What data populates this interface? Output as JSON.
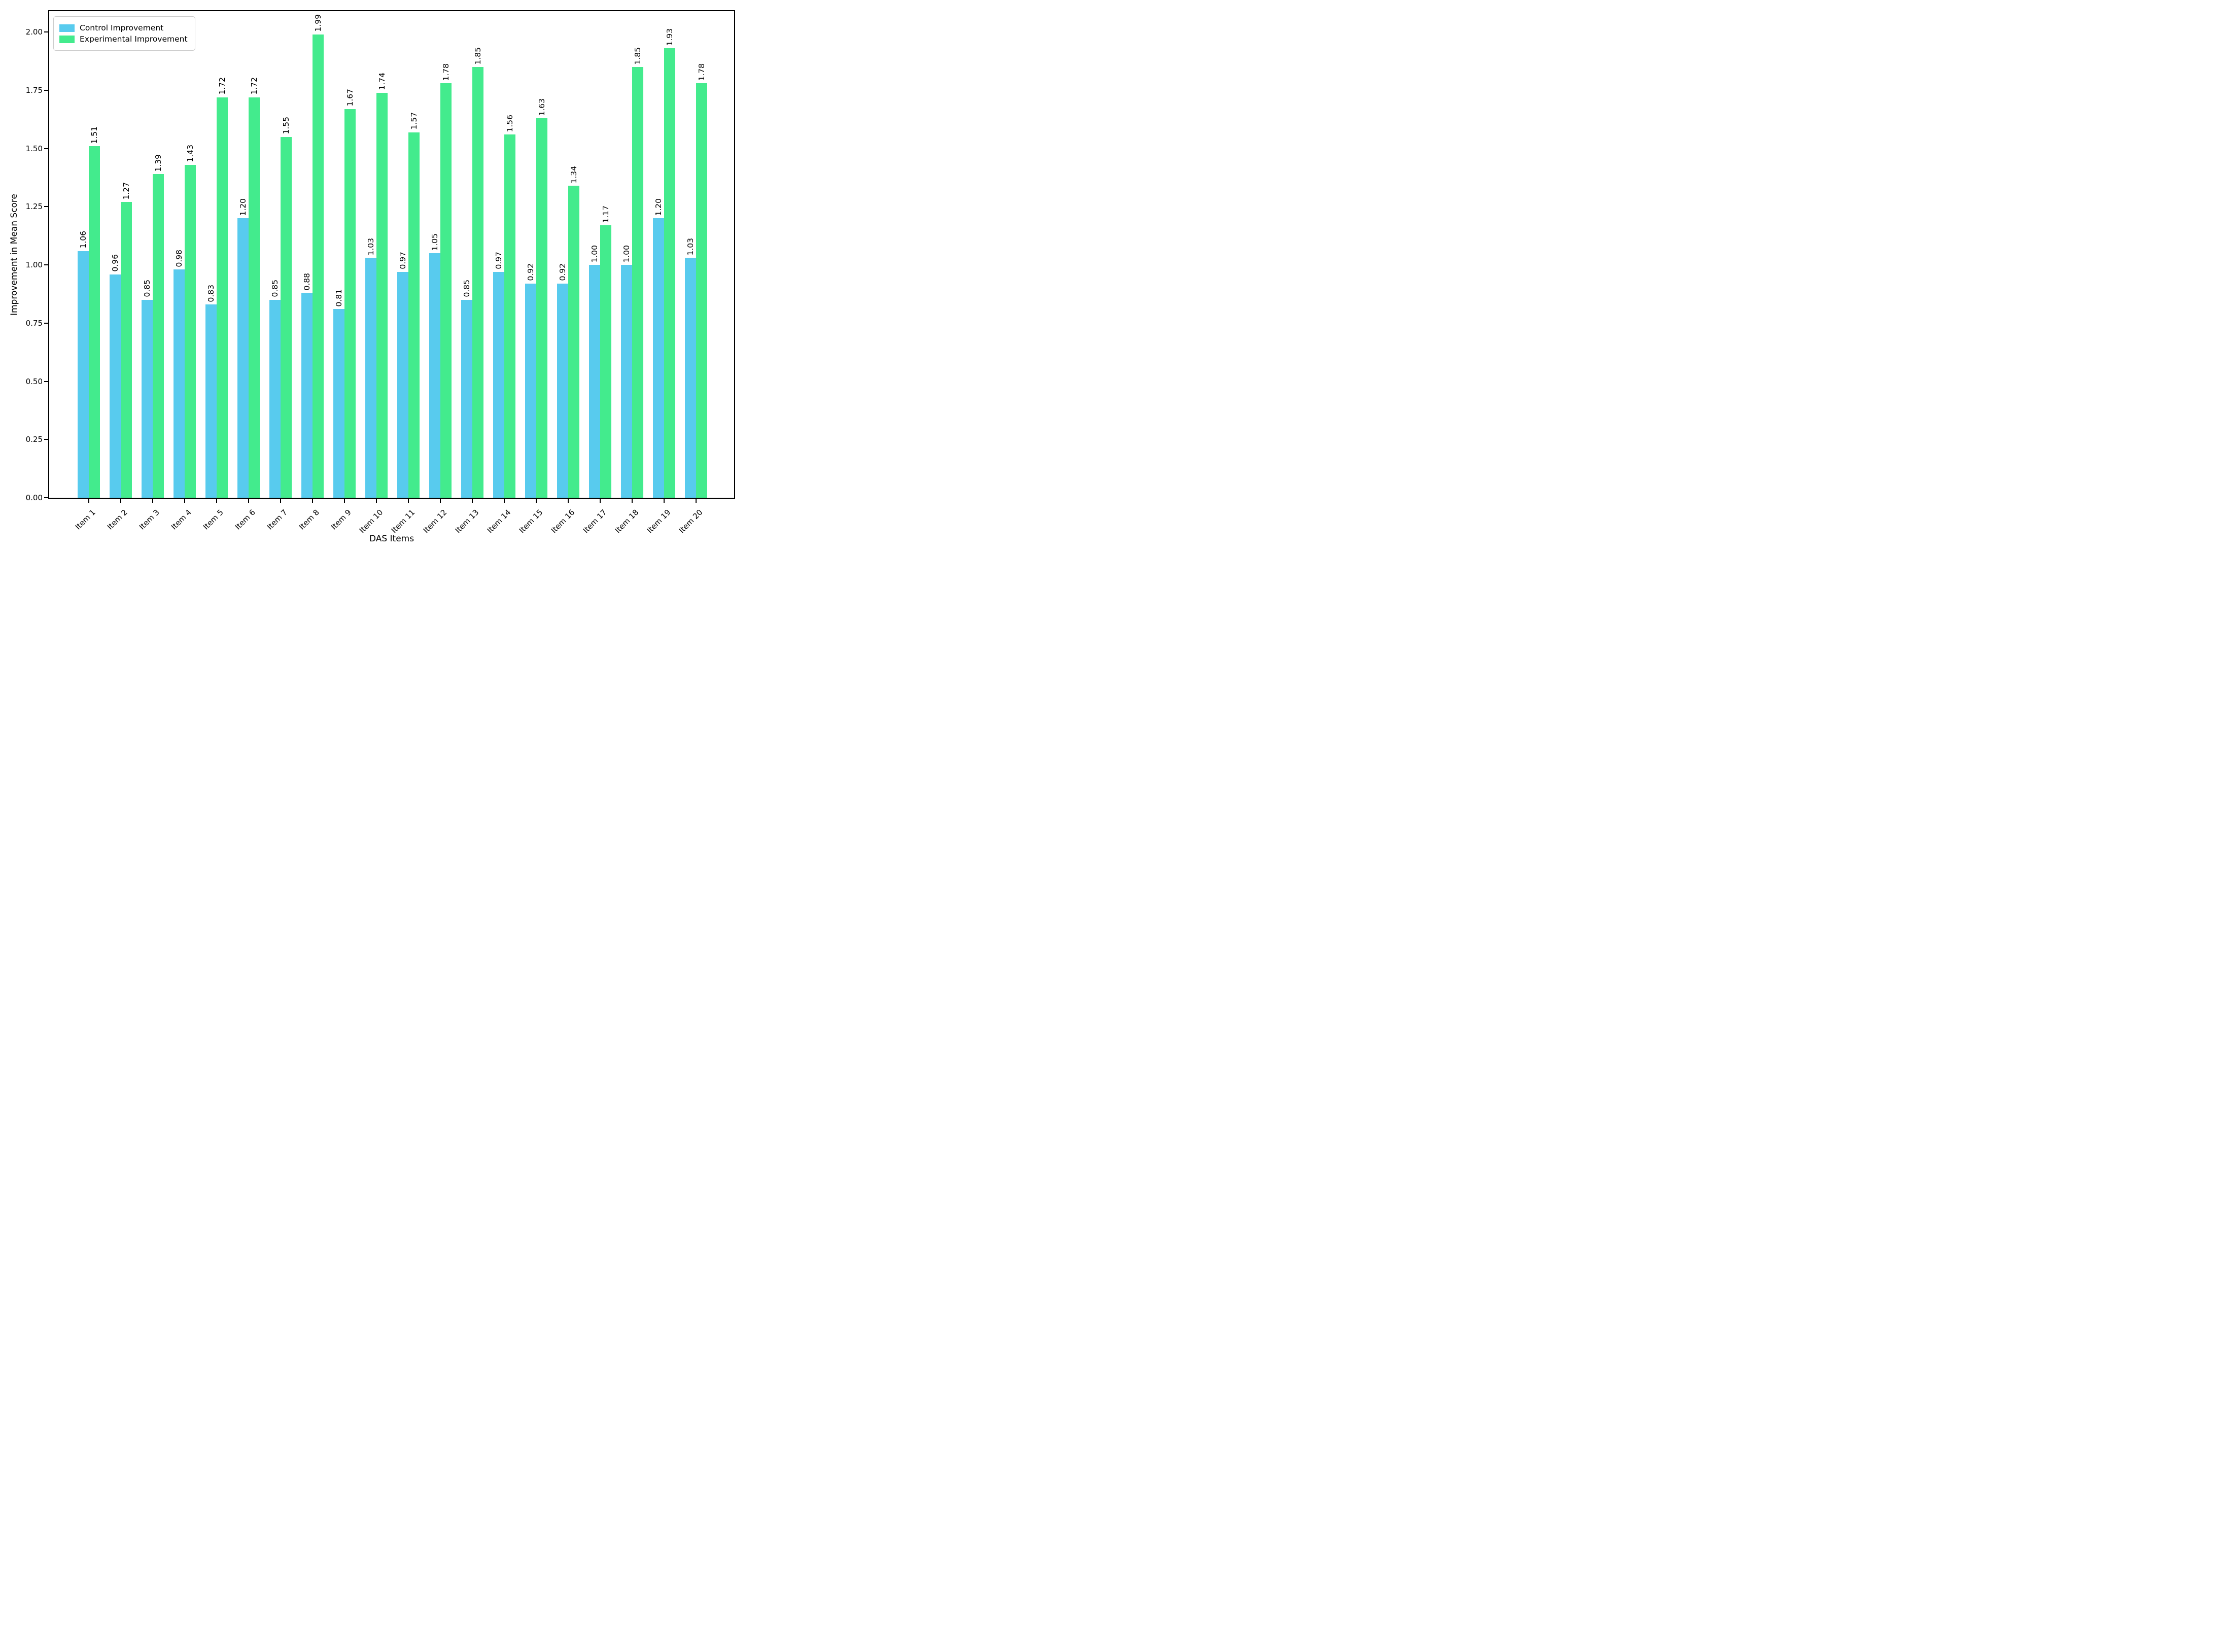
{
  "chart_data": {
    "type": "bar",
    "title": "",
    "xlabel": "DAS Items",
    "ylabel": "Improvement in Mean Score",
    "categories": [
      "Item 1",
      "Item 2",
      "Item 3",
      "Item 4",
      "Item 5",
      "Item 6",
      "Item 7",
      "Item 8",
      "Item 9",
      "Item 10",
      "Item 11",
      "Item 12",
      "Item 13",
      "Item 14",
      "Item 15",
      "Item 16",
      "Item 17",
      "Item 18",
      "Item 19",
      "Item 20"
    ],
    "series": [
      {
        "name": "Control Improvement",
        "color": "#58CBEE",
        "values": [
          1.06,
          0.96,
          0.85,
          0.98,
          0.83,
          1.2,
          0.85,
          0.88,
          0.81,
          1.03,
          0.97,
          1.05,
          0.85,
          0.97,
          0.92,
          0.92,
          1.0,
          1.0,
          1.2,
          1.03
        ]
      },
      {
        "name": "Experimental Improvement",
        "color": "#43EB8D",
        "values": [
          1.51,
          1.27,
          1.39,
          1.43,
          1.72,
          1.72,
          1.55,
          1.99,
          1.67,
          1.74,
          1.57,
          1.78,
          1.85,
          1.56,
          1.63,
          1.34,
          1.17,
          1.85,
          1.93,
          1.78
        ]
      }
    ],
    "bar_value_labels": {
      "visible": true,
      "decimals": 2,
      "rotation_degrees": 90
    },
    "ylim": [
      0,
      2.09
    ],
    "yticks": [
      0.0,
      0.25,
      0.5,
      0.75,
      1.0,
      1.25,
      1.5,
      1.75,
      2.0
    ],
    "ytick_labels": [
      "0.00",
      "0.25",
      "0.50",
      "0.75",
      "1.00",
      "1.25",
      "1.50",
      "1.75",
      "2.00"
    ],
    "xtick_rotation_degrees": 45,
    "legend_position": "upper left",
    "grid": false,
    "background_color": "#ffffff",
    "spine_color": "#000000"
  }
}
